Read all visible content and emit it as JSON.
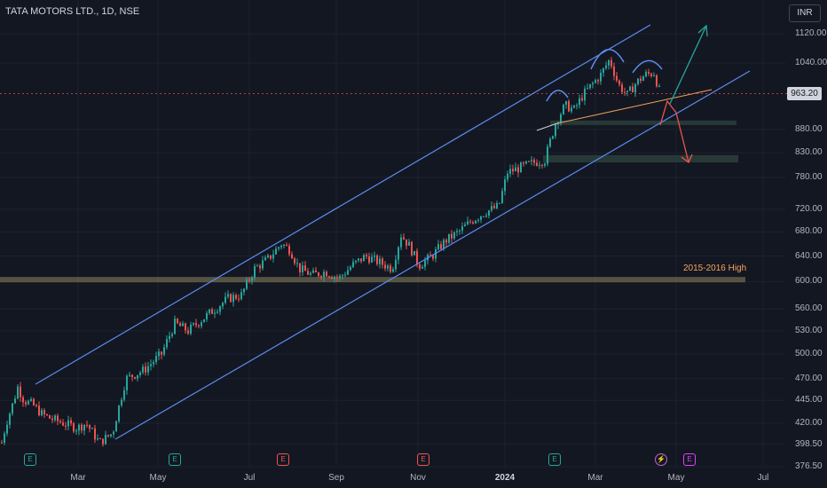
{
  "header": {
    "title": "TATA MOTORS LTD., 1D, NSE",
    "currency_button": "INR"
  },
  "current_price": "963.20",
  "annotation": "2015-2016 High",
  "events": [
    {
      "x_label": "Feb",
      "type": "E"
    },
    {
      "x_label": "Jun",
      "type": "E"
    },
    {
      "x_label": "Aug",
      "type": "E"
    },
    {
      "x_label": "Nov",
      "type": "E"
    },
    {
      "x_label": "Feb24",
      "type": "E"
    },
    {
      "x_label": "Apr24",
      "type": "split"
    },
    {
      "x_label": "Apr24b",
      "type": "E"
    }
  ],
  "colors": {
    "background": "#131722",
    "up": "#26a69a",
    "down": "#ef5350",
    "channel": "#5b8def",
    "support_zone": "#2a3d3a",
    "annotation": "#f7a35c"
  },
  "chart_data": {
    "type": "candlestick",
    "symbol": "TATA MOTORS LTD.",
    "interval": "1D",
    "exchange": "NSE",
    "currency": "INR",
    "y_scale": "log",
    "y_ticks": [
      "1120.00",
      "1040.00",
      "880.00",
      "830.00",
      "780.00",
      "720.00",
      "680.00",
      "640.00",
      "600.00",
      "560.00",
      "530.00",
      "500.00",
      "470.00",
      "445.00",
      "420.00",
      "398.50",
      "376.50"
    ],
    "y_tick_values": [
      1120,
      1040,
      880,
      830,
      780,
      720,
      680,
      640,
      600,
      560,
      530,
      500,
      470,
      445,
      420,
      398.5,
      376.5
    ],
    "x_ticks": [
      "Mar",
      "May",
      "Jul",
      "Sep",
      "Nov",
      "2024",
      "Mar",
      "May",
      "Jul"
    ],
    "close_path": [
      {
        "t": 0,
        "p": 400
      },
      {
        "t": 5,
        "p": 420
      },
      {
        "t": 12,
        "p": 440
      },
      {
        "t": 18,
        "p": 460
      },
      {
        "t": 25,
        "p": 445
      },
      {
        "t": 35,
        "p": 440
      },
      {
        "t": 45,
        "p": 430
      },
      {
        "t": 55,
        "p": 425
      },
      {
        "t": 70,
        "p": 420
      },
      {
        "t": 85,
        "p": 415
      },
      {
        "t": 95,
        "p": 420
      },
      {
        "t": 110,
        "p": 400
      },
      {
        "t": 125,
        "p": 410
      },
      {
        "t": 140,
        "p": 470
      },
      {
        "t": 160,
        "p": 480
      },
      {
        "t": 180,
        "p": 500
      },
      {
        "t": 195,
        "p": 540
      },
      {
        "t": 210,
        "p": 530
      },
      {
        "t": 225,
        "p": 545
      },
      {
        "t": 240,
        "p": 560
      },
      {
        "t": 255,
        "p": 575
      },
      {
        "t": 270,
        "p": 580
      },
      {
        "t": 285,
        "p": 620
      },
      {
        "t": 300,
        "p": 635
      },
      {
        "t": 315,
        "p": 660
      },
      {
        "t": 325,
        "p": 650
      },
      {
        "t": 335,
        "p": 620
      },
      {
        "t": 350,
        "p": 610
      },
      {
        "t": 365,
        "p": 615
      },
      {
        "t": 380,
        "p": 605
      },
      {
        "t": 395,
        "p": 625
      },
      {
        "t": 410,
        "p": 640
      },
      {
        "t": 425,
        "p": 630
      },
      {
        "t": 440,
        "p": 620
      },
      {
        "t": 450,
        "p": 675
      },
      {
        "t": 460,
        "p": 655
      },
      {
        "t": 470,
        "p": 625
      },
      {
        "t": 485,
        "p": 640
      },
      {
        "t": 500,
        "p": 665
      },
      {
        "t": 515,
        "p": 680
      },
      {
        "t": 530,
        "p": 700
      },
      {
        "t": 545,
        "p": 715
      },
      {
        "t": 560,
        "p": 725
      },
      {
        "t": 570,
        "p": 790
      },
      {
        "t": 585,
        "p": 800
      },
      {
        "t": 600,
        "p": 810
      },
      {
        "t": 612,
        "p": 815
      },
      {
        "t": 625,
        "p": 900
      },
      {
        "t": 635,
        "p": 935
      },
      {
        "t": 645,
        "p": 925
      },
      {
        "t": 655,
        "p": 960
      },
      {
        "t": 665,
        "p": 985
      },
      {
        "t": 675,
        "p": 1010
      },
      {
        "t": 685,
        "p": 1050
      },
      {
        "t": 695,
        "p": 985
      },
      {
        "t": 705,
        "p": 960
      },
      {
        "t": 715,
        "p": 990
      },
      {
        "t": 725,
        "p": 1010
      },
      {
        "t": 735,
        "p": 1015
      },
      {
        "t": 742,
        "p": 963
      }
    ],
    "current_price": 963.2,
    "horizontal_levels": [
      {
        "label": "2015-2016 High",
        "price": 603
      }
    ],
    "support_zones": [
      [
        890,
        900
      ],
      [
        810,
        825
      ]
    ],
    "patterns": [
      "head and shoulders",
      "rising channel"
    ],
    "projections": [
      {
        "direction": "up",
        "target": 1130
      },
      {
        "direction": "down",
        "target": 815
      }
    ]
  }
}
